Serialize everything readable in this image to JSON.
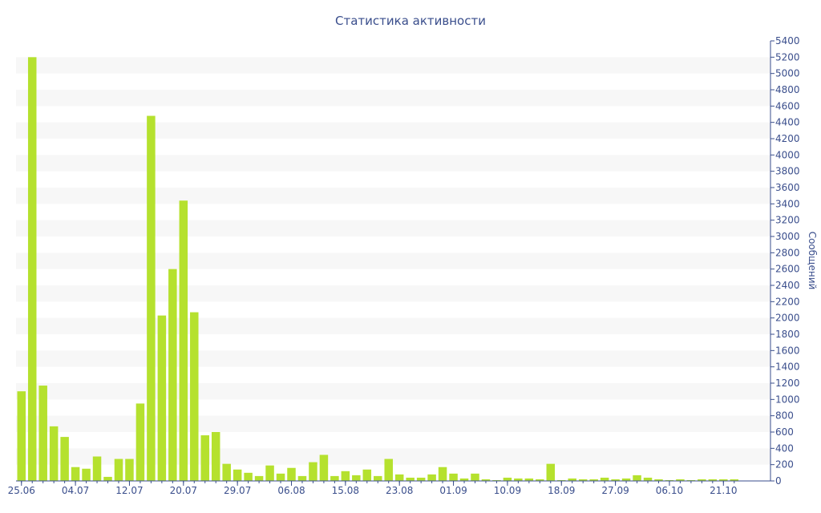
{
  "chart_data": {
    "type": "bar",
    "title": "Статистика активности",
    "ylabel": "Сообщений",
    "xlabel": "",
    "ylim": [
      0,
      5400
    ],
    "y_ticks": [
      0,
      200,
      400,
      600,
      800,
      1000,
      1200,
      1400,
      1600,
      1800,
      2000,
      2200,
      2400,
      2600,
      2800,
      3000,
      3200,
      3400,
      3600,
      3800,
      4000,
      4200,
      4400,
      4600,
      4800,
      5000,
      5200,
      5400
    ],
    "y_axis_position": "right",
    "grid": "alternating horizontal bands",
    "x_tick_labels": [
      "25.06",
      "04.07",
      "12.07",
      "20.07",
      "29.07",
      "06.08",
      "15.08",
      "23.08",
      "01.09",
      "10.09",
      "18.09",
      "27.09",
      "06.10",
      "21.10"
    ],
    "x_tick_bar_index": [
      0,
      5,
      10,
      15,
      20,
      25,
      30,
      35,
      40,
      45,
      50,
      55,
      60,
      65
    ],
    "values": [
      1100,
      5200,
      1170,
      670,
      540,
      170,
      150,
      300,
      50,
      270,
      270,
      950,
      4480,
      2030,
      2600,
      3440,
      2070,
      560,
      600,
      210,
      140,
      100,
      60,
      190,
      90,
      160,
      60,
      230,
      320,
      60,
      120,
      70,
      140,
      60,
      270,
      80,
      40,
      40,
      80,
      170,
      90,
      30,
      90,
      20,
      10,
      40,
      30,
      30,
      20,
      210,
      10,
      30,
      20,
      20,
      40,
      20,
      30,
      70,
      40,
      20,
      10,
      20,
      10,
      20,
      20,
      20,
      20
    ]
  },
  "colors": {
    "bar": "#b5e12e",
    "band": "#f7f7f7",
    "axis": "#3a4e8c",
    "text": "#3a4e8c"
  }
}
